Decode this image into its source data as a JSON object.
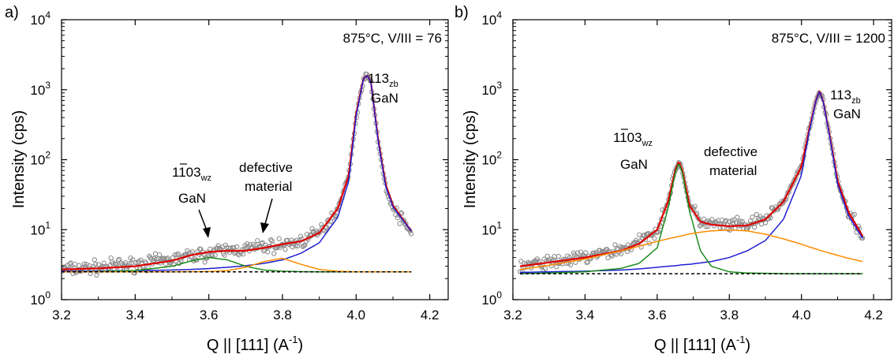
{
  "figure": {
    "panels": [
      {
        "id": "a",
        "panel_label": "a)",
        "condition": "875°C, V/III = 76",
        "ylabel": "Intensity (cps)",
        "xlabel_main": "Q || [111] (A",
        "xlabel_exp": "-1",
        "xlabel_close": ")",
        "peak1": {
          "label_main": "113",
          "label_sub": "zb",
          "material": "GaN"
        },
        "peak2": {
          "label_main": "1",
          "label_bar": "1",
          "label_rest": "03",
          "label_sub": "wz",
          "material": "GaN"
        },
        "annotation": {
          "line1": "defective",
          "line2": "material"
        }
      },
      {
        "id": "b",
        "panel_label": "b)",
        "condition": "875°C, V/III = 1200",
        "ylabel": "Intensity (cps)",
        "xlabel_main": "Q || [111] (A",
        "xlabel_exp": "-1",
        "xlabel_close": ")",
        "peak1": {
          "label_main": "113",
          "label_sub": "zb",
          "material": "GaN"
        },
        "peak2": {
          "label_main": "1",
          "label_bar": "1",
          "label_rest": "03",
          "label_sub": "wz",
          "material": "GaN"
        },
        "annotation": {
          "line1": "defective",
          "line2": "material"
        }
      }
    ]
  },
  "chart_data": [
    {
      "type": "line",
      "panel": "a",
      "title": "",
      "xlabel": "Q || [111] (A-1)",
      "ylabel": "Intensity (cps)",
      "xlim": [
        3.2,
        4.25
      ],
      "ylim": [
        1,
        10000
      ],
      "yscale": "log",
      "xticks": [
        "3.2",
        "3.4",
        "3.6",
        "3.8",
        "4.0",
        "4.2"
      ],
      "yticks": [
        {
          "base": "10",
          "exp": "0"
        },
        {
          "base": "10",
          "exp": "1"
        },
        {
          "base": "10",
          "exp": "2"
        },
        {
          "base": "10",
          "exp": "3"
        },
        {
          "base": "10",
          "exp": "4"
        }
      ],
      "x": [
        3.2,
        3.3,
        3.4,
        3.5,
        3.55,
        3.6,
        3.65,
        3.7,
        3.75,
        3.8,
        3.85,
        3.9,
        3.95,
        3.98,
        4.0,
        4.02,
        4.03,
        4.04,
        4.06,
        4.08,
        4.1,
        4.15
      ],
      "series": [
        {
          "role": "data",
          "color": "#8c8c8c",
          "values": [
            2.7,
            2.9,
            3.2,
            3.7,
            4.2,
            4.6,
            5.1,
            5.3,
            5.7,
            6.0,
            6.8,
            9.0,
            20,
            60,
            400,
            1450,
            1600,
            1300,
            180,
            40,
            20,
            9
          ]
        },
        {
          "role": "fit",
          "color": "#e00000",
          "values": [
            2.7,
            2.8,
            3.0,
            3.6,
            4.3,
            4.8,
            5.0,
            5.0,
            5.5,
            6.2,
            6.8,
            9.0,
            20,
            60,
            450,
            1450,
            1600,
            1300,
            190,
            45,
            22,
            9.5
          ]
        },
        {
          "role": "component",
          "color": "#1f1fd0",
          "values": [
            2.55,
            2.56,
            2.6,
            2.65,
            2.7,
            2.78,
            2.9,
            3.05,
            3.3,
            3.7,
            4.6,
            6.5,
            15,
            50,
            420,
            1430,
            1600,
            1280,
            180,
            42,
            21,
            9.5
          ]
        },
        {
          "role": "component",
          "color": "#1a8c1a",
          "values": [
            2.5,
            2.52,
            2.6,
            3.0,
            3.55,
            4.0,
            3.7,
            3.0,
            2.65,
            2.55,
            2.51,
            2.5,
            2.5,
            2.5,
            2.5,
            2.5,
            2.5,
            2.5,
            2.5,
            2.5,
            2.5,
            2.5
          ]
        },
        {
          "role": "component",
          "color": "#ff8c00",
          "values": [
            2.5,
            2.5,
            2.5,
            2.5,
            2.51,
            2.52,
            2.6,
            2.9,
            3.5,
            3.9,
            3.2,
            2.7,
            2.55,
            2.52,
            2.5,
            2.5,
            2.5,
            2.5,
            2.5,
            2.5,
            2.5,
            2.5
          ]
        },
        {
          "role": "background",
          "color": "#000000",
          "values": [
            2.5,
            2.5,
            2.5,
            2.5,
            2.5,
            2.5,
            2.5,
            2.5,
            2.5,
            2.5,
            2.5,
            2.5,
            2.5,
            2.5,
            2.5,
            2.5,
            2.5,
            2.5,
            2.5,
            2.5,
            2.5,
            2.5
          ]
        }
      ]
    },
    {
      "type": "line",
      "panel": "b",
      "title": "",
      "xlabel": "Q || [111] (A-1)",
      "ylabel": "Intensity (cps)",
      "xlim": [
        3.2,
        4.25
      ],
      "ylim": [
        1,
        10000
      ],
      "yscale": "log",
      "xticks": [
        "3.2",
        "3.4",
        "3.6",
        "3.8",
        "4.0",
        "4.2"
      ],
      "yticks": [
        {
          "base": "10",
          "exp": "0"
        },
        {
          "base": "10",
          "exp": "1"
        },
        {
          "base": "10",
          "exp": "2"
        },
        {
          "base": "10",
          "exp": "3"
        },
        {
          "base": "10",
          "exp": "4"
        }
      ],
      "x": [
        3.22,
        3.3,
        3.4,
        3.5,
        3.55,
        3.6,
        3.63,
        3.65,
        3.66,
        3.67,
        3.69,
        3.72,
        3.75,
        3.8,
        3.85,
        3.9,
        3.95,
        4.0,
        4.02,
        4.04,
        4.05,
        4.06,
        4.08,
        4.1,
        4.13,
        4.17
      ],
      "series": [
        {
          "role": "data",
          "color": "#8c8c8c",
          "values": [
            3.0,
            3.4,
            4.0,
            5.2,
            6.5,
            10,
            25,
            70,
            95,
            70,
            22,
            13,
            12,
            11.5,
            11.5,
            14,
            25,
            80,
            250,
            700,
            950,
            700,
            200,
            50,
            18,
            8
          ]
        },
        {
          "role": "fit",
          "color": "#e00000",
          "values": [
            3.0,
            3.4,
            4.0,
            5.0,
            6.3,
            10,
            25,
            70,
            95,
            70,
            22,
            13,
            11.8,
            11.2,
            11.5,
            14,
            25,
            80,
            250,
            700,
            950,
            700,
            200,
            50,
            18,
            8
          ]
        },
        {
          "role": "component",
          "color": "#1f1fd0",
          "values": [
            2.45,
            2.5,
            2.55,
            2.65,
            2.75,
            2.9,
            3.0,
            3.05,
            3.1,
            3.15,
            3.2,
            3.35,
            3.5,
            4.0,
            5.0,
            7.0,
            14,
            60,
            230,
            690,
            940,
            690,
            190,
            45,
            16,
            7.5
          ]
        },
        {
          "role": "component",
          "color": "#1a8c1a",
          "values": [
            2.35,
            2.4,
            2.5,
            2.8,
            3.3,
            5.5,
            20,
            65,
            90,
            65,
            18,
            5.0,
            3.0,
            2.5,
            2.4,
            2.38,
            2.35,
            2.35,
            2.35,
            2.35,
            2.35,
            2.35,
            2.35,
            2.35,
            2.35,
            2.35
          ]
        },
        {
          "role": "component",
          "color": "#ff8c00",
          "values": [
            2.7,
            3.1,
            3.8,
            5.0,
            5.8,
            6.8,
            7.4,
            7.8,
            8.0,
            8.2,
            8.7,
            9.2,
            9.6,
            9.9,
            9.6,
            8.6,
            7.4,
            6.2,
            5.7,
            5.3,
            5.1,
            4.9,
            4.6,
            4.3,
            3.9,
            3.5
          ]
        },
        {
          "role": "background",
          "color": "#000000",
          "values": [
            2.35,
            2.35,
            2.35,
            2.35,
            2.35,
            2.35,
            2.35,
            2.35,
            2.35,
            2.35,
            2.35,
            2.35,
            2.35,
            2.35,
            2.35,
            2.35,
            2.35,
            2.35,
            2.35,
            2.35,
            2.35,
            2.35,
            2.35,
            2.35,
            2.35,
            2.35
          ]
        }
      ]
    }
  ]
}
